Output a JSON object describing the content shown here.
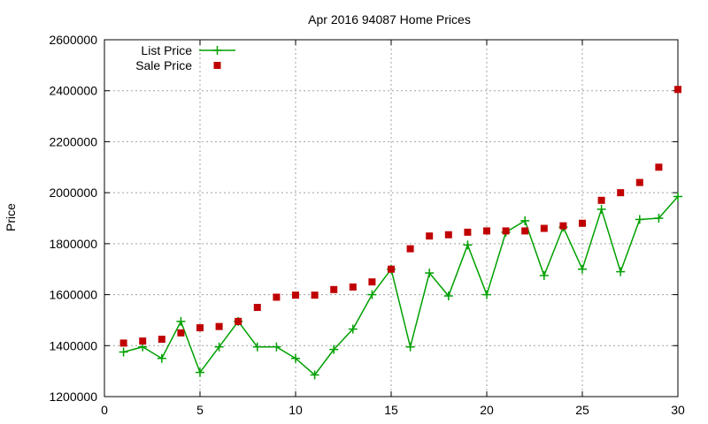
{
  "chart_data": {
    "type": "line",
    "title": "Apr 2016 94087 Home Prices",
    "xlabel": "",
    "ylabel": "Price",
    "xlim": [
      0,
      30
    ],
    "ylim": [
      1200000,
      2600000
    ],
    "x_ticks": [
      0,
      5,
      10,
      15,
      20,
      25,
      30
    ],
    "y_ticks": [
      1200000,
      1400000,
      1600000,
      1800000,
      2000000,
      2200000,
      2400000,
      2600000
    ],
    "grid": true,
    "legend_position": "top-left",
    "series": [
      {
        "name": "List Price",
        "style": "line-plus",
        "color": "#00a000",
        "x": [
          1,
          2,
          3,
          4,
          5,
          6,
          7,
          8,
          9,
          10,
          11,
          12,
          13,
          14,
          15,
          16,
          17,
          18,
          19,
          20,
          21,
          22,
          23,
          24,
          25,
          26,
          27,
          28,
          29,
          30
        ],
        "y": [
          1375000,
          1395000,
          1350000,
          1495000,
          1295000,
          1395000,
          1495000,
          1395000,
          1395000,
          1350000,
          1285000,
          1385000,
          1465000,
          1600000,
          1700000,
          1395000,
          1685000,
          1595000,
          1795000,
          1600000,
          1845000,
          1890000,
          1675000,
          1865000,
          1700000,
          1935000,
          1690000,
          1895000,
          1900000,
          1985000
        ]
      },
      {
        "name": "Sale Price",
        "style": "square-points",
        "color": "#c00000",
        "x": [
          1,
          2,
          3,
          4,
          5,
          6,
          7,
          8,
          9,
          10,
          11,
          12,
          13,
          14,
          15,
          16,
          17,
          18,
          19,
          20,
          21,
          22,
          23,
          24,
          25,
          26,
          27,
          28,
          29,
          30
        ],
        "y": [
          1410000,
          1418000,
          1425000,
          1450000,
          1470000,
          1475000,
          1495000,
          1550000,
          1590000,
          1598000,
          1598000,
          1620000,
          1630000,
          1650000,
          1700000,
          1780000,
          1830000,
          1835000,
          1845000,
          1850000,
          1850000,
          1850000,
          1860000,
          1870000,
          1880000,
          1970000,
          2000000,
          2040000,
          2100000,
          2405000
        ]
      }
    ]
  }
}
